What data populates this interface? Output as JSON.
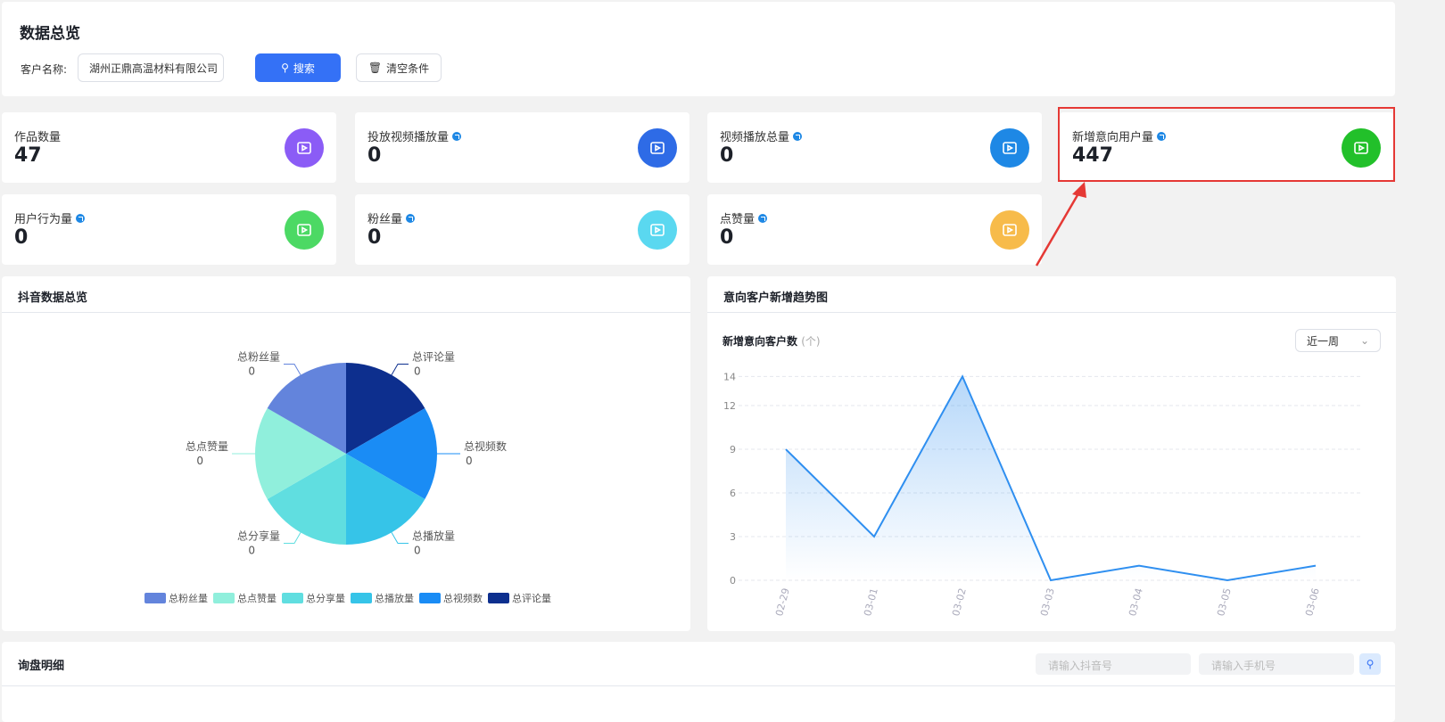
{
  "header": {
    "title": "数据总览",
    "customer_label": "客户名称:",
    "customer_value": "湖州正鼎高温材料有限公司",
    "search_label": "搜索",
    "clear_label": "清空条件"
  },
  "cards": [
    {
      "name": "作品数量",
      "value": "47",
      "icon": "video-icon",
      "color": "#8b5cf6",
      "info": false
    },
    {
      "name": "投放视频播放量",
      "value": "0",
      "icon": "play-square-icon",
      "color": "#2e6be6",
      "info": true
    },
    {
      "name": "视频播放总量",
      "value": "0",
      "icon": "play-circle-icon",
      "color": "#1e88e5",
      "info": true
    },
    {
      "name": "新增意向用户量",
      "value": "447",
      "icon": "user-icon",
      "color": "#22c02a",
      "info": true,
      "highlighted": true
    },
    {
      "name": "用户行为量",
      "value": "0",
      "icon": "user-action-icon",
      "color": "#4cd964",
      "info": true
    },
    {
      "name": "粉丝量",
      "value": "0",
      "icon": "fans-icon",
      "color": "#5ad8f0",
      "info": true
    },
    {
      "name": "点赞量",
      "value": "0",
      "icon": "thumbs-up-icon",
      "color": "#f7bb4a",
      "info": true
    }
  ],
  "douyin": {
    "title": "抖音数据总览"
  },
  "trend": {
    "title": "意向客户新增趋势图",
    "chart_title": "新增意向客户数",
    "unit": "(个)",
    "range": "近一周"
  },
  "inquiry": {
    "title": "询盘明细",
    "douyin_placeholder": "请输入抖音号",
    "phone_placeholder": "请输入手机号"
  },
  "chart_data": [
    {
      "type": "pie",
      "labels": [
        "总粉丝量",
        "总点赞量",
        "总分享量",
        "总播放量",
        "总视频数",
        "总评论量"
      ],
      "values": [
        0,
        0,
        0,
        0,
        0,
        0
      ],
      "colors": [
        "#6384dc",
        "#90efdc",
        "#60dee0",
        "#36c4e8",
        "#1a8cf5",
        "#0d2f8e"
      ],
      "legend": "bottom"
    },
    {
      "type": "area",
      "categories": [
        "02-29",
        "03-01",
        "03-02",
        "03-03",
        "03-04",
        "03-05",
        "03-06"
      ],
      "values": [
        9,
        3,
        14,
        0,
        1,
        0,
        1
      ],
      "yticks": [
        0,
        3,
        6,
        9,
        12,
        14
      ],
      "ylim": [
        0,
        14
      ],
      "grid": true,
      "color": "#2f8ff0"
    }
  ]
}
